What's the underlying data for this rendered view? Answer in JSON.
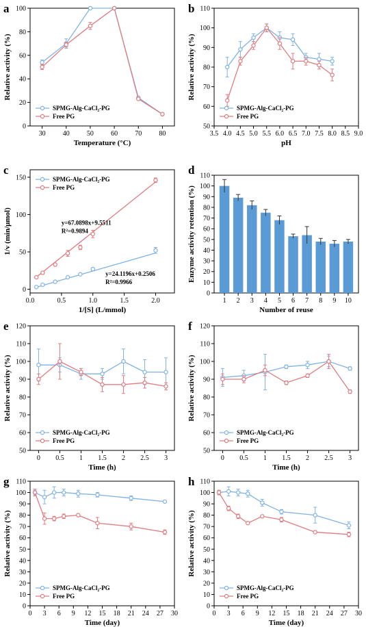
{
  "colors": {
    "blue": "#7fb2e5",
    "red": "#e07b80",
    "bar": "#5b9bd5"
  },
  "chart_data": [
    {
      "panel": "a",
      "type": "line",
      "xlabel": "Temperature (°C)",
      "ylabel": "Relative activity (%)",
      "xlim": [
        25,
        85
      ],
      "ylim": [
        0,
        100
      ],
      "xticks": [
        30,
        40,
        50,
        60,
        70,
        80
      ],
      "yticks": [
        0,
        20,
        40,
        60,
        80,
        100
      ],
      "legend_loc": "lower-left",
      "series": [
        {
          "name": "SPMG-Alg-CaCl₂-PG",
          "color": "blue",
          "x": [
            30,
            40,
            50,
            60,
            70,
            80
          ],
          "y": [
            54,
            70,
            100,
            100,
            24,
            10
          ],
          "err": [
            2,
            4,
            1,
            1,
            1,
            1
          ]
        },
        {
          "name": "Free PG",
          "color": "red",
          "x": [
            30,
            40,
            50,
            60,
            70,
            80
          ],
          "y": [
            50,
            69,
            85,
            100,
            23,
            10
          ],
          "err": [
            2,
            2,
            3,
            1,
            1,
            1
          ]
        }
      ]
    },
    {
      "panel": "b",
      "type": "line",
      "xlabel": "pH",
      "ylabel": "Relative activity (%)",
      "xlim": [
        3.5,
        9.0
      ],
      "ylim": [
        50,
        110
      ],
      "xticks": [
        3.5,
        4.0,
        4.5,
        5.0,
        5.5,
        6.0,
        6.5,
        7.0,
        7.5,
        8.0,
        8.5,
        9.0
      ],
      "xticklabels": [
        "3.5",
        "4.0",
        "4.5",
        "5.0",
        "5.5",
        "6.0",
        "6.5",
        "7.0",
        "7.5",
        "8.0",
        "8.5",
        "9.0"
      ],
      "yticks": [
        50,
        60,
        70,
        80,
        90,
        100,
        110
      ],
      "legend_loc": "lower-left",
      "series": [
        {
          "name": "SPMG-Alg-CaCl₂-PG",
          "color": "blue",
          "x": [
            4.0,
            4.5,
            5.0,
            5.5,
            6.0,
            6.5,
            7.0,
            7.5,
            8.0
          ],
          "y": [
            80,
            89,
            95,
            100,
            95,
            94,
            85,
            84,
            83
          ],
          "err": [
            5,
            4,
            2,
            2,
            3,
            3,
            2,
            3,
            2
          ]
        },
        {
          "name": "Free PG",
          "color": "red",
          "x": [
            4.0,
            4.5,
            5.0,
            5.5,
            6.0,
            6.5,
            7.0,
            7.5,
            8.0
          ],
          "y": [
            63,
            83,
            91,
            100,
            92,
            83,
            83,
            81,
            76
          ],
          "err": [
            3,
            2,
            2,
            2,
            3,
            4,
            2,
            2,
            3
          ]
        }
      ]
    },
    {
      "panel": "c",
      "type": "scatter",
      "xlabel": "1/[S] (L/mmol)",
      "ylabel": "1/v (min/μmol)",
      "xlim": [
        0,
        2.3
      ],
      "ylim": [
        -5,
        160
      ],
      "xticks": [
        0.0,
        0.5,
        1.0,
        1.5,
        2.0
      ],
      "xticklabels": [
        "0.0",
        "0.5",
        "1.0",
        "1.5",
        "2.0"
      ],
      "yticks": [
        0,
        50,
        100,
        150
      ],
      "legend_loc": "top-left",
      "annotations": [
        {
          "lines": [
            "y=67.0898x+9.5511",
            "R²=0.9894"
          ],
          "at": [
            0.5,
            86
          ]
        },
        {
          "lines": [
            "y=24.1196x+0.2506",
            "R²=0.9966"
          ],
          "at": [
            1.2,
            18
          ]
        }
      ],
      "series": [
        {
          "name": "SPMG-Alg-CaCl₂-PG",
          "color": "blue",
          "x": [
            0.1,
            0.2,
            0.4,
            0.6,
            0.8,
            1.0,
            2.0
          ],
          "y": [
            3,
            6,
            10,
            16,
            20,
            27,
            52
          ],
          "err": [
            1,
            1,
            1,
            1,
            1,
            2,
            4
          ],
          "fit": {
            "slope": 24.1196,
            "intercept": 0.2506
          }
        },
        {
          "name": "Free PG",
          "color": "red",
          "x": [
            0.1,
            0.2,
            0.4,
            0.6,
            0.8,
            1.0,
            2.0
          ],
          "y": [
            16,
            22,
            33,
            48,
            56,
            74,
            146
          ],
          "err": [
            1,
            2,
            2,
            4,
            3,
            5,
            3
          ],
          "fit": {
            "slope": 67.0898,
            "intercept": 9.5511
          }
        }
      ]
    },
    {
      "panel": "d",
      "type": "bar",
      "xlabel": "Number of reuse",
      "ylabel": "Enzyme activity retention (%)",
      "ylim": [
        0,
        110
      ],
      "yticks": [
        0,
        10,
        20,
        30,
        40,
        50,
        60,
        70,
        80,
        90,
        100,
        110
      ],
      "categories": [
        "1",
        "2",
        "3",
        "4",
        "5",
        "6",
        "7",
        "8",
        "9",
        "10"
      ],
      "values": [
        100,
        89,
        82,
        75,
        68,
        53,
        54,
        48,
        46,
        48
      ],
      "err": [
        6,
        3,
        4,
        3,
        4,
        2,
        8,
        3,
        3,
        2
      ]
    },
    {
      "panel": "e",
      "type": "line",
      "xlabel": "Time (h)",
      "ylabel": "Relative activity (%)",
      "xlim": [
        -0.2,
        3.2
      ],
      "ylim": [
        50,
        120
      ],
      "xticks": [
        0,
        0.5,
        1,
        1.5,
        2,
        2.5,
        3
      ],
      "xticklabels": [
        "0",
        "0.5",
        "1",
        "1.5",
        "2",
        "2.5",
        "3"
      ],
      "yticks": [
        50,
        60,
        70,
        80,
        90,
        100,
        110,
        120
      ],
      "legend_loc": "lower-left",
      "series": [
        {
          "name": "SPMG-Alg-CaCl₂-PG",
          "color": "blue",
          "x": [
            0,
            0.5,
            1,
            1.5,
            2,
            2.5,
            3
          ],
          "y": [
            98,
            98,
            93,
            93,
            100,
            94,
            94
          ],
          "err": [
            9,
            4,
            3,
            3,
            7,
            7,
            8
          ]
        },
        {
          "name": "Free PG",
          "color": "red",
          "x": [
            0,
            0.5,
            1,
            1.5,
            2,
            2.5,
            3
          ],
          "y": [
            90,
            100,
            94,
            87,
            87,
            88,
            86
          ],
          "err": [
            3,
            10,
            2,
            4,
            5,
            3,
            2
          ]
        }
      ]
    },
    {
      "panel": "f",
      "type": "line",
      "xlabel": "Time (h)",
      "ylabel": "Relative activity (%)",
      "xlim": [
        -0.2,
        3.2
      ],
      "ylim": [
        50,
        120
      ],
      "xticks": [
        0,
        0.5,
        1,
        1.5,
        2,
        2.5,
        3
      ],
      "xticklabels": [
        "0",
        "0.5",
        "1",
        "1.5",
        "2",
        "2.5",
        "3"
      ],
      "yticks": [
        50,
        60,
        70,
        80,
        90,
        100,
        110,
        120
      ],
      "legend_loc": "lower-left",
      "series": [
        {
          "name": "SPMG-Alg-CaCl₂-PG",
          "color": "blue",
          "x": [
            0,
            0.5,
            1,
            1.5,
            2,
            2.5,
            3
          ],
          "y": [
            91,
            92,
            94,
            97,
            98,
            100,
            96
          ],
          "err": [
            5,
            3,
            10,
            1,
            2,
            3,
            1
          ]
        },
        {
          "name": "Free PG",
          "color": "red",
          "x": [
            0,
            0.5,
            1,
            1.5,
            2,
            2.5,
            3
          ],
          "y": [
            90,
            90,
            95,
            88,
            92,
            100,
            83
          ],
          "err": [
            3,
            2,
            3,
            1,
            1,
            4,
            1
          ]
        }
      ]
    },
    {
      "panel": "g",
      "type": "line",
      "xlabel": "Time (day)",
      "ylabel": "Relative activity (%)",
      "xlim": [
        0,
        30
      ],
      "ylim": [
        0,
        110
      ],
      "xticks": [
        0,
        3,
        6,
        9,
        12,
        15,
        18,
        21,
        24,
        27,
        30
      ],
      "yticks": [
        0,
        10,
        20,
        30,
        40,
        50,
        60,
        70,
        80,
        90,
        100,
        110
      ],
      "legend_loc": "lower-left",
      "series": [
        {
          "name": "SPMG-Alg-CaCl₂-PG",
          "color": "blue",
          "x": [
            1,
            3,
            5,
            7,
            10,
            14,
            21,
            28
          ],
          "y": [
            100,
            96,
            100,
            100,
            99,
            98,
            95,
            92
          ],
          "err": [
            2,
            6,
            5,
            3,
            3,
            2,
            2,
            1
          ]
        },
        {
          "name": "Free PG",
          "color": "red",
          "x": [
            1,
            3,
            5,
            7,
            10,
            14,
            21,
            28
          ],
          "y": [
            100,
            77,
            77,
            79,
            80,
            73,
            70,
            65
          ],
          "err": [
            3,
            5,
            2,
            2,
            1,
            5,
            3,
            2
          ]
        }
      ]
    },
    {
      "panel": "h",
      "type": "line",
      "xlabel": "Time (day)",
      "ylabel": "Relative activity (%)",
      "xlim": [
        0,
        30
      ],
      "ylim": [
        0,
        110
      ],
      "xticks": [
        0,
        3,
        6,
        9,
        12,
        15,
        18,
        21,
        24,
        27,
        30
      ],
      "yticks": [
        0,
        10,
        20,
        30,
        40,
        50,
        60,
        70,
        80,
        90,
        100,
        110
      ],
      "legend_loc": "lower-left",
      "series": [
        {
          "name": "SPMG-Alg-CaCl₂-PG",
          "color": "blue",
          "x": [
            1,
            3,
            5,
            7,
            10,
            14,
            21,
            28
          ],
          "y": [
            100,
            101,
            100,
            99,
            91,
            83,
            80,
            71
          ],
          "err": [
            2,
            4,
            3,
            3,
            3,
            2,
            7,
            3
          ]
        },
        {
          "name": "Free PG",
          "color": "red",
          "x": [
            1,
            3,
            5,
            7,
            10,
            14,
            21,
            28
          ],
          "y": [
            100,
            86,
            79,
            73,
            79,
            76,
            65,
            63
          ],
          "err": [
            2,
            2,
            2,
            1,
            1,
            2,
            1,
            2
          ]
        }
      ]
    }
  ]
}
